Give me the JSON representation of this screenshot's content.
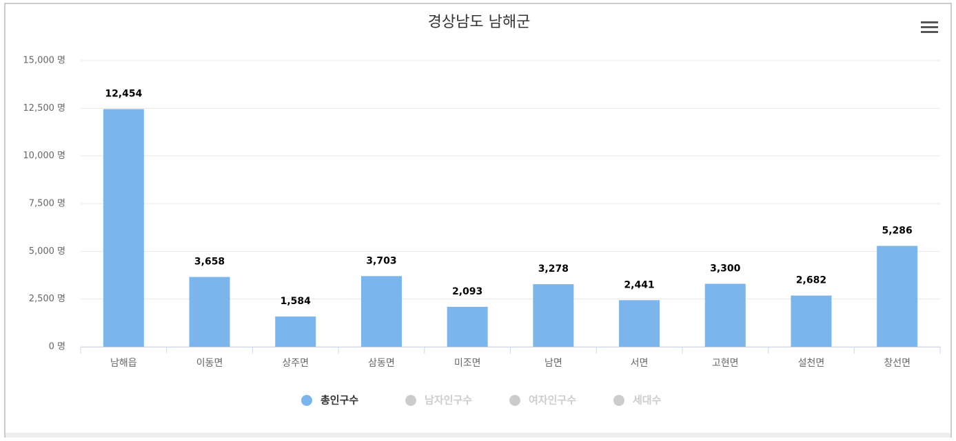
{
  "chart_data": {
    "type": "bar",
    "title": "경상남도 남해군",
    "categories": [
      "남해읍",
      "이동면",
      "상주면",
      "삼동면",
      "미조면",
      "남면",
      "서면",
      "고현면",
      "설천면",
      "창선면"
    ],
    "series": [
      {
        "name": "총인구수",
        "color": "#7cb5ec",
        "values": [
          12454,
          3658,
          1584,
          3703,
          2093,
          3278,
          2441,
          3300,
          2682,
          5286
        ],
        "value_labels": [
          "12,454",
          "3,658",
          "1,584",
          "3,703",
          "2,093",
          "3,278",
          "2,441",
          "3,300",
          "2,682",
          "5,286"
        ]
      }
    ],
    "hidden_series": [
      {
        "name": "남자인구수",
        "color": "#cccccc"
      },
      {
        "name": "여자인구수",
        "color": "#cccccc"
      },
      {
        "name": "세대수",
        "color": "#cccccc"
      }
    ],
    "ylim": [
      0,
      15000
    ],
    "yticks": [
      {
        "value": 0,
        "label": "0 명"
      },
      {
        "value": 2500,
        "label": "2,500 명"
      },
      {
        "value": 5000,
        "label": "5,000 명"
      },
      {
        "value": 7500,
        "label": "7,500 명"
      },
      {
        "value": 10000,
        "label": "10,000 명"
      },
      {
        "value": 12500,
        "label": "12,500 명"
      },
      {
        "value": 15000,
        "label": "15,000 명"
      }
    ],
    "grid": true
  }
}
